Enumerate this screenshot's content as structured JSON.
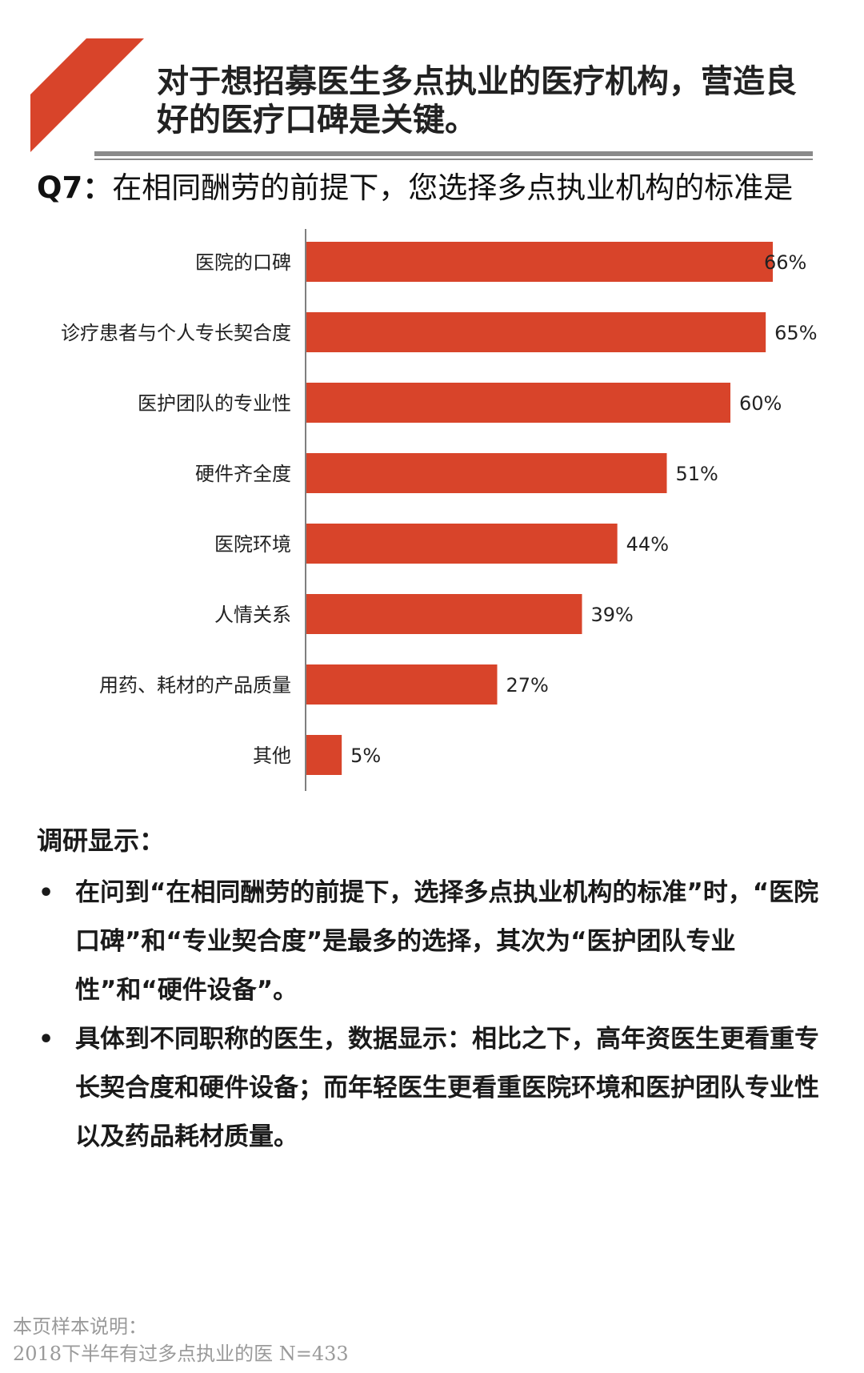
{
  "header": {
    "headline": "对于想招募医生多点执业的医疗机构，营造良好的医疗口碑是关键。",
    "accent_color": "#d8442a"
  },
  "question": {
    "number": "Q7：",
    "text": "在相同酬劳的前提下，您选择多点执业机构的标准是"
  },
  "chart_data": {
    "type": "bar",
    "orientation": "horizontal",
    "categories": [
      "医院的口碑",
      "诊疗患者与个人专长契合度",
      "医护团队的专业性",
      "硬件齐全度",
      "医院环境",
      "人情关系",
      "用药、耗材的产品质量",
      "其他"
    ],
    "values": [
      66,
      65,
      60,
      51,
      44,
      39,
      27,
      5
    ],
    "value_labels": [
      "66%",
      "65%",
      "60%",
      "51%",
      "44%",
      "39%",
      "27%",
      "5%"
    ],
    "unit": "%",
    "bar_color": "#d8442a",
    "grid": false,
    "legend": "none"
  },
  "findings": {
    "title": "调研显示：",
    "bullet_symbol": "•",
    "items": [
      "在问到“在相同酬劳的前提下，选择多点执业机构的标准”时，“医院口碑”和“专业契合度”是最多的选择，其次为“医护团队专业性”和“硬件设备”。",
      "具体到不同职称的医生，数据显示：相比之下，高年资医生更看重专长契合度和硬件设备；而年轻医生更看重医院环境和医护团队专业性以及药品耗材质量。"
    ]
  },
  "footnote": {
    "line1": "本页样本说明：",
    "line2": "2018下半年有过多点执业的医  N=433"
  }
}
